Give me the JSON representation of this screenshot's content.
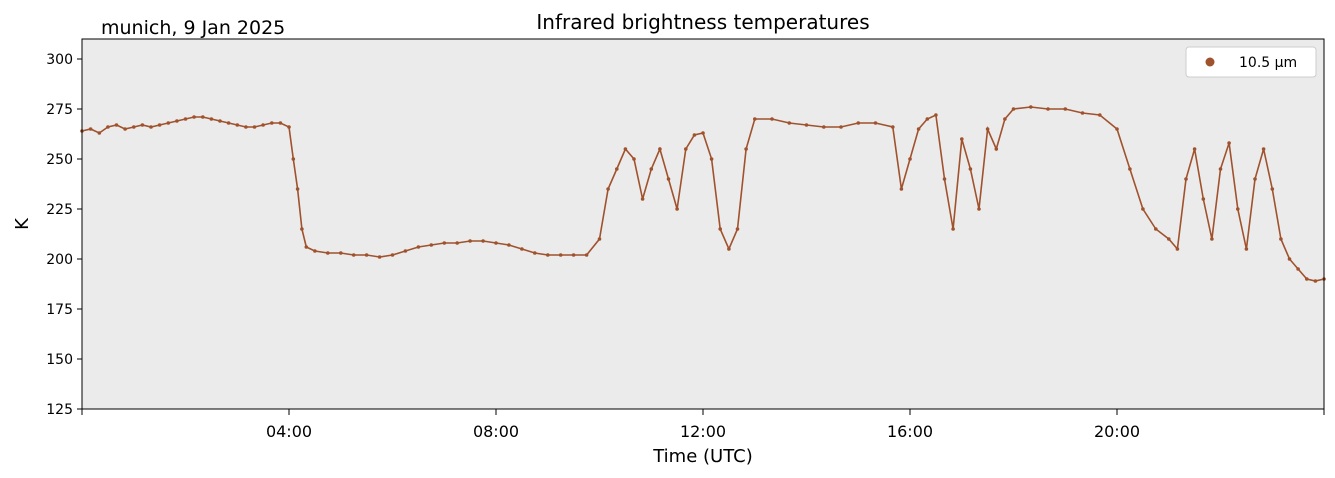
{
  "chart_data": {
    "type": "scatter",
    "title": "Infrared brightness temperatures",
    "location_label": "munich, 9 Jan 2025",
    "xlabel": "Time (UTC)",
    "ylabel": "K",
    "xlim": [
      "00:00",
      "24:00"
    ],
    "ylim": [
      125,
      310
    ],
    "yticks": [
      125,
      150,
      175,
      200,
      225,
      250,
      275,
      300
    ],
    "xticks": [
      {
        "t": "04:00",
        "label": "04:00"
      },
      {
        "t": "08:00",
        "label": "08:00"
      },
      {
        "t": "12:00",
        "label": "12:00"
      },
      {
        "t": "16:00",
        "label": "16:00"
      },
      {
        "t": "20:00",
        "label": "20:00"
      }
    ],
    "grid": false,
    "legend_position": "top-right",
    "colors": {
      "series": "#a0522d",
      "plot_bg": "#ebebeb"
    },
    "series": [
      {
        "name": "10.5 µm",
        "points": [
          [
            "00:00",
            264
          ],
          [
            "00:10",
            265
          ],
          [
            "00:20",
            263
          ],
          [
            "00:30",
            266
          ],
          [
            "00:40",
            267
          ],
          [
            "00:50",
            265
          ],
          [
            "01:00",
            266
          ],
          [
            "01:10",
            267
          ],
          [
            "01:20",
            266
          ],
          [
            "01:30",
            267
          ],
          [
            "01:40",
            268
          ],
          [
            "01:50",
            269
          ],
          [
            "02:00",
            270
          ],
          [
            "02:10",
            271
          ],
          [
            "02:20",
            271
          ],
          [
            "02:30",
            270
          ],
          [
            "02:40",
            269
          ],
          [
            "02:50",
            268
          ],
          [
            "03:00",
            267
          ],
          [
            "03:10",
            266
          ],
          [
            "03:20",
            266
          ],
          [
            "03:30",
            267
          ],
          [
            "03:40",
            268
          ],
          [
            "03:50",
            268
          ],
          [
            "04:00",
            266
          ],
          [
            "04:05",
            250
          ],
          [
            "04:10",
            235
          ],
          [
            "04:15",
            215
          ],
          [
            "04:20",
            206
          ],
          [
            "04:30",
            204
          ],
          [
            "04:45",
            203
          ],
          [
            "05:00",
            203
          ],
          [
            "05:15",
            202
          ],
          [
            "05:30",
            202
          ],
          [
            "05:45",
            201
          ],
          [
            "06:00",
            202
          ],
          [
            "06:15",
            204
          ],
          [
            "06:30",
            206
          ],
          [
            "06:45",
            207
          ],
          [
            "07:00",
            208
          ],
          [
            "07:15",
            208
          ],
          [
            "07:30",
            209
          ],
          [
            "07:45",
            209
          ],
          [
            "08:00",
            208
          ],
          [
            "08:15",
            207
          ],
          [
            "08:30",
            205
          ],
          [
            "08:45",
            203
          ],
          [
            "09:00",
            202
          ],
          [
            "09:15",
            202
          ],
          [
            "09:30",
            202
          ],
          [
            "09:45",
            202
          ],
          [
            "10:00",
            210
          ],
          [
            "10:10",
            235
          ],
          [
            "10:20",
            245
          ],
          [
            "10:30",
            255
          ],
          [
            "10:40",
            250
          ],
          [
            "10:50",
            230
          ],
          [
            "11:00",
            245
          ],
          [
            "11:10",
            255
          ],
          [
            "11:20",
            240
          ],
          [
            "11:30",
            225
          ],
          [
            "11:40",
            255
          ],
          [
            "11:50",
            262
          ],
          [
            "12:00",
            263
          ],
          [
            "12:10",
            250
          ],
          [
            "12:20",
            215
          ],
          [
            "12:30",
            205
          ],
          [
            "12:40",
            215
          ],
          [
            "12:50",
            255
          ],
          [
            "13:00",
            270
          ],
          [
            "13:20",
            270
          ],
          [
            "13:40",
            268
          ],
          [
            "14:00",
            267
          ],
          [
            "14:20",
            266
          ],
          [
            "14:40",
            266
          ],
          [
            "15:00",
            268
          ],
          [
            "15:20",
            268
          ],
          [
            "15:40",
            266
          ],
          [
            "15:50",
            235
          ],
          [
            "16:00",
            250
          ],
          [
            "16:10",
            265
          ],
          [
            "16:20",
            270
          ],
          [
            "16:30",
            272
          ],
          [
            "16:40",
            240
          ],
          [
            "16:50",
            215
          ],
          [
            "17:00",
            260
          ],
          [
            "17:10",
            245
          ],
          [
            "17:20",
            225
          ],
          [
            "17:30",
            265
          ],
          [
            "17:40",
            255
          ],
          [
            "17:50",
            270
          ],
          [
            "18:00",
            275
          ],
          [
            "18:20",
            276
          ],
          [
            "18:40",
            275
          ],
          [
            "19:00",
            275
          ],
          [
            "19:20",
            273
          ],
          [
            "19:40",
            272
          ],
          [
            "20:00",
            265
          ],
          [
            "20:15",
            245
          ],
          [
            "20:30",
            225
          ],
          [
            "20:45",
            215
          ],
          [
            "21:00",
            210
          ],
          [
            "21:10",
            205
          ],
          [
            "21:20",
            240
          ],
          [
            "21:30",
            255
          ],
          [
            "21:40",
            230
          ],
          [
            "21:50",
            210
          ],
          [
            "22:00",
            245
          ],
          [
            "22:10",
            258
          ],
          [
            "22:20",
            225
          ],
          [
            "22:30",
            205
          ],
          [
            "22:40",
            240
          ],
          [
            "22:50",
            255
          ],
          [
            "23:00",
            235
          ],
          [
            "23:10",
            210
          ],
          [
            "23:20",
            200
          ],
          [
            "23:30",
            195
          ],
          [
            "23:40",
            190
          ],
          [
            "23:50",
            189
          ],
          [
            "24:00",
            190
          ]
        ]
      }
    ]
  }
}
